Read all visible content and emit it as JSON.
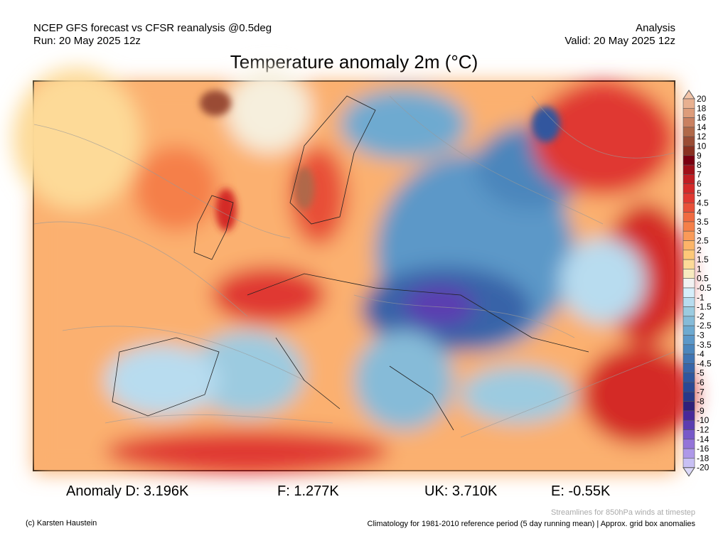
{
  "header": {
    "line1_left": "NCEP GFS forecast vs CFSR reanalysis @0.5deg",
    "line2_left": "Run: 20 May 2025 12z",
    "line1_right": "Analysis",
    "line2_right": "Valid: 20 May 2025 12z"
  },
  "title": "Temperature anomaly 2m (°C)",
  "stats": {
    "d": "Anomaly D: 3.196K",
    "f": "F: 1.277K",
    "uk": "UK: 3.710K",
    "e": "E: -0.55K"
  },
  "footer": {
    "copyright": "(c) Karsten Haustein",
    "streamlines": "Streamlines for 850hPa winds at timestep",
    "climatology": "Climatology for 1981-2010 reference period (5 day running mean) | Approx. grid box anomalies"
  },
  "legend": {
    "labels": [
      "20",
      "18",
      "16",
      "14",
      "12",
      "10",
      "9",
      "8",
      "7",
      "6",
      "5",
      "4.5",
      "4",
      "3.5",
      "3",
      "2.5",
      "2",
      "1.5",
      "1",
      "0.5",
      "-0.5",
      "-1",
      "-1.5",
      "-2",
      "-2.5",
      "-3",
      "-3.5",
      "-4",
      "-4.5",
      "-5",
      "-6",
      "-7",
      "-8",
      "-9",
      "-10",
      "-12",
      "-14",
      "-16",
      "-18",
      "-20"
    ],
    "colors": [
      "#f2c4a8",
      "#e8b090",
      "#dd9c7a",
      "#c98060",
      "#b06848",
      "#9a4c34",
      "#8a3020",
      "#7a0010",
      "#a01018",
      "#c01e22",
      "#d42a28",
      "#e03830",
      "#e85038",
      "#f06a40",
      "#f57f48",
      "#fa9a58",
      "#fdb468",
      "#fec878",
      "#fdda98",
      "#f8ebc0",
      "#f2f2f2",
      "#d6eefa",
      "#b8dcef",
      "#9ccbe0",
      "#86bbd8",
      "#6eaad0",
      "#5c98c8",
      "#4c86bc",
      "#4074b2",
      "#3864a8",
      "#30569e",
      "#2a4894",
      "#283888",
      "#30207a",
      "#48289a",
      "#5c3cb0",
      "#7858c8",
      "#9474d8",
      "#ae98e8",
      "#c8c0f4",
      "#dcd8f8"
    ]
  }
}
